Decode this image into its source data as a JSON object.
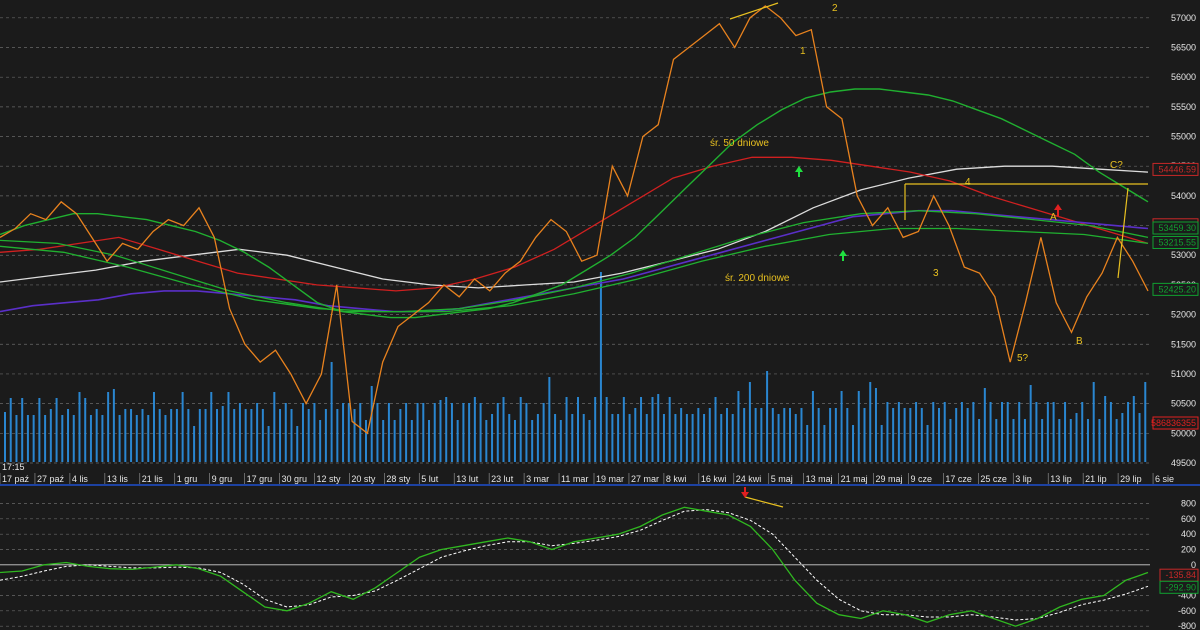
{
  "chart_data": {
    "type": "line",
    "time_label": "17:15",
    "date_labels": [
      "17 paź",
      "27 paź",
      "4 lis",
      "13 lis",
      "21 lis",
      "1 gru",
      "9 gru",
      "17 gru",
      "30 gru",
      "12 sty",
      "20 sty",
      "28 sty",
      "5 lut",
      "13 lut",
      "23 lut",
      "3 mar",
      "11 mar",
      "19 mar",
      "27 mar",
      "8 kwi",
      "16 kwi",
      "24 kwi",
      "5 maj",
      "13 maj",
      "21 maj",
      "29 maj",
      "9 cze",
      "17 cze",
      "25 cze",
      "3 lip",
      "13 lip",
      "21 lip",
      "29 lip",
      "6 sie"
    ],
    "main": {
      "ylim": [
        49500,
        57300
      ],
      "yticks": [
        49500,
        50000,
        50500,
        51000,
        51500,
        52000,
        52500,
        53000,
        53500,
        54000,
        54500,
        55000,
        55500,
        56000,
        56500,
        57000
      ],
      "price": [
        53300,
        53450,
        53700,
        53600,
        53900,
        53700,
        53300,
        52900,
        53200,
        53100,
        53400,
        53600,
        53500,
        53800,
        53300,
        52100,
        51500,
        51200,
        51400,
        51000,
        50500,
        51000,
        52500,
        50200,
        50000,
        51200,
        51800,
        52000,
        52200,
        52500,
        52300,
        52600,
        52400,
        52700,
        52900,
        53300,
        53600,
        53400,
        52900,
        53000,
        54500,
        54000,
        55000,
        55200,
        56300,
        56500,
        56700,
        56900,
        56500,
        57000,
        57200,
        57000,
        56700,
        56800,
        55500,
        55300,
        54000,
        53500,
        53800,
        53300,
        53400,
        54000,
        53500,
        52800,
        52700,
        52300,
        51200,
        52200,
        53300,
        52200,
        51700,
        52300,
        52700,
        53300,
        52900,
        52400
      ],
      "sma50": [
        53350,
        53500,
        53600,
        53700,
        53700,
        53650,
        53600,
        53500,
        53400,
        53250,
        53050,
        52800,
        52500,
        52200,
        52050,
        52000,
        51950,
        51950,
        52000,
        52050,
        52100,
        52200,
        52350,
        52500,
        52750,
        53000,
        53300,
        53700,
        54100,
        54500,
        54900,
        55200,
        55450,
        55650,
        55750,
        55800,
        55800,
        55750,
        55700,
        55600,
        55450,
        55300,
        55100,
        54900,
        54700,
        54400,
        54150,
        53900
      ],
      "sma200": [
        52050,
        52150,
        52200,
        52250,
        52350,
        52400,
        52400,
        52350,
        52300,
        52250,
        52150,
        52100,
        52050,
        52050,
        52100,
        52200,
        52300,
        52400,
        52500,
        52600,
        52750,
        52900,
        53050,
        53200,
        53350,
        53500,
        53650,
        53700,
        53750,
        53750,
        53700,
        53650,
        53600,
        53550,
        53500,
        53450
      ],
      "avg_red": [
        53050,
        53100,
        53200,
        53300,
        53100,
        52900,
        52700,
        52600,
        52500,
        52450,
        52400,
        52450,
        52600,
        52800,
        53100,
        53500,
        53900,
        54300,
        54500,
        54650,
        54650,
        54600,
        54500,
        54400,
        54250,
        54000,
        53800,
        53600,
        53400,
        53200
      ],
      "avg_white": [
        52550,
        52650,
        52750,
        52900,
        53000,
        53100,
        53000,
        52800,
        52600,
        52500,
        52450,
        52500,
        52550,
        52700,
        52900,
        53100,
        53400,
        53800,
        54100,
        54300,
        54450,
        54500,
        54500,
        54450,
        54400
      ],
      "avg_green_mid": [
        53250,
        53200,
        53000,
        52700,
        52400,
        52200,
        52050,
        52050,
        52100,
        52250,
        52450,
        52700,
        53000,
        53300,
        53550,
        53700,
        53750,
        53700,
        53600,
        53500,
        53300
      ],
      "avg_green_low": [
        53150,
        53050,
        52800,
        52500,
        52250,
        52100,
        52050,
        52050,
        52150,
        52350,
        52600,
        52900,
        53150,
        53350,
        53450,
        53450,
        53400,
        53350,
        53200
      ],
      "price_labels": [
        {
          "label": "54446.59",
          "value": 54446,
          "color": "#c82828"
        },
        {
          "label": "53513.20",
          "value": 53513,
          "color": "#c82828"
        },
        {
          "label": "53459.30",
          "value": 53459,
          "color": "#10a030"
        },
        {
          "label": "53215.55",
          "value": 53215,
          "color": "#10a030"
        },
        {
          "label": "52425.20",
          "value": 52425,
          "color": "#10a030"
        }
      ],
      "annotations": [
        "1",
        "2",
        "3",
        "4",
        "5?",
        "A",
        "B",
        "C?",
        "śr. 50 dniowe",
        "śr. 200 dniowe"
      ]
    },
    "volume": {
      "last_label": "586836355"
    },
    "oscillator": {
      "ylim": [
        -850,
        950
      ],
      "yticks": [
        -800,
        -600,
        -400,
        -200,
        0,
        200,
        400,
        600,
        800
      ],
      "line": [
        -100,
        -80,
        0,
        30,
        -20,
        -50,
        -60,
        -30,
        0,
        -50,
        -150,
        -350,
        -550,
        -600,
        -500,
        -350,
        -450,
        -300,
        -100,
        100,
        200,
        250,
        300,
        350,
        300,
        200,
        300,
        350,
        400,
        500,
        650,
        750,
        700,
        650,
        500,
        200,
        -200,
        -500,
        -650,
        -700,
        -600,
        -650,
        -750,
        -650,
        -600,
        -700,
        -800,
        -700,
        -550,
        -450,
        -400,
        -200,
        -100
      ],
      "signal": [
        -200,
        -150,
        -80,
        -20,
        0,
        -20,
        -40,
        -40,
        -30,
        -40,
        -100,
        -250,
        -450,
        -550,
        -520,
        -420,
        -400,
        -340,
        -200,
        -50,
        100,
        180,
        250,
        300,
        300,
        250,
        280,
        320,
        370,
        450,
        580,
        700,
        720,
        680,
        580,
        400,
        100,
        -200,
        -450,
        -600,
        -650,
        -650,
        -680,
        -680,
        -650,
        -680,
        -720,
        -700,
        -620,
        -520,
        -460,
        -380,
        -280
      ],
      "labels": [
        {
          "label": "-135.84",
          "value": -135,
          "color": "#c82828"
        },
        {
          "label": "-292.90",
          "value": -293,
          "color": "#10a030"
        }
      ]
    }
  },
  "colors": {
    "background": "#1b1b1b",
    "grid": "#6a6a6a",
    "price": "#e8821e",
    "sma50": "#20b030",
    "sma200": "#5a2fc8",
    "avg_red": "#d02020",
    "avg_white": "#dcdcdc",
    "volume": "#2a86d0",
    "oscillator": "#30b820",
    "signal": "#ffffff",
    "annotation": "#e8c020",
    "arrow_up": "#20e040",
    "arrow_down": "#e02020",
    "separator": "#1e50d0"
  }
}
